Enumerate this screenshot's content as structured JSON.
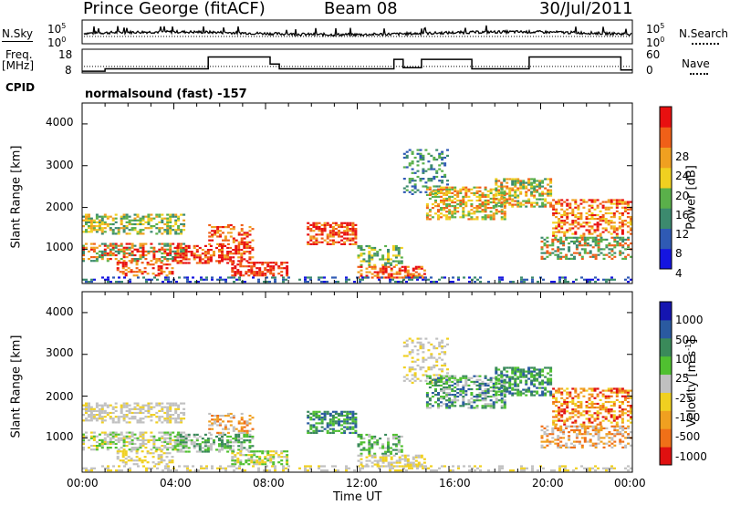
{
  "header": {
    "station": "Prince George (fitACF)",
    "beam": "Beam 08",
    "date": "30/Jul/2011"
  },
  "labels": {
    "nsky": "N.Sky",
    "nsearch": "N.Search",
    "freq": "Freq.",
    "mhz": "[MHz]",
    "nave": "Nave",
    "cpid": "CPID",
    "cpid_value": "normalsound (fast) -157"
  },
  "colors": {
    "power": [
      "#1515e0",
      "#2f5ab4",
      "#3c8a6e",
      "#5ab04a",
      "#f0d020",
      "#f0a020",
      "#f06018",
      "#e81010"
    ],
    "velocity": [
      "#e01010",
      "#f07018",
      "#f0a020",
      "#f0d020",
      "#c0c0c0",
      "#50c030",
      "#3a8a5a",
      "#2a5aa0",
      "#1515b0"
    ]
  },
  "chart_data": [
    {
      "type": "line",
      "panel": "noise",
      "left_ticks": [
        "10^5",
        "10^0"
      ],
      "right_ticks": [
        "10^5",
        "10^0"
      ]
    },
    {
      "type": "line",
      "panel": "frequency",
      "left_ticks": [
        "18",
        "8"
      ],
      "right_ticks": [
        "60",
        "0"
      ],
      "freq_segments": [
        {
          "start": 0.0,
          "end": 1.0,
          "mhz": 9.5
        },
        {
          "start": 1.0,
          "end": 5.5,
          "mhz": 10.5
        },
        {
          "start": 5.5,
          "end": 7.0,
          "mhz": 15.5
        },
        {
          "start": 7.0,
          "end": 8.2,
          "mhz": 15.5
        },
        {
          "start": 8.2,
          "end": 8.6,
          "mhz": 12.5
        },
        {
          "start": 8.6,
          "end": 13.6,
          "mhz": 10.5
        },
        {
          "start": 13.6,
          "end": 14.0,
          "mhz": 14.5
        },
        {
          "start": 14.0,
          "end": 14.8,
          "mhz": 11.0
        },
        {
          "start": 14.8,
          "end": 17.0,
          "mhz": 14.5
        },
        {
          "start": 17.0,
          "end": 19.5,
          "mhz": 10.5
        },
        {
          "start": 19.5,
          "end": 23.5,
          "mhz": 15.5
        },
        {
          "start": 23.5,
          "end": 24.0,
          "mhz": 10.0
        }
      ],
      "nave_level": 11.5
    },
    {
      "type": "heatmap",
      "panel": "power",
      "xlabel": "",
      "ylabel": "Slant Range [km]",
      "yticks": [
        1000,
        2000,
        3000,
        4000
      ],
      "ylim": [
        180,
        4500
      ],
      "colorbar_label": "Power [dB]",
      "colorbar_ticks": [
        4,
        8,
        12,
        16,
        20,
        24,
        28
      ],
      "colorbar_range": [
        0,
        32
      ]
    },
    {
      "type": "heatmap",
      "panel": "velocity",
      "xlabel": "Time UT",
      "ylabel": "Slant Range [km]",
      "yticks": [
        1000,
        2000,
        3000,
        4000
      ],
      "ylim": [
        180,
        4500
      ],
      "colorbar_label": "Velocity [m s^-1]",
      "colorbar_ticks": [
        "1000",
        "500",
        "100",
        "25",
        "-25",
        "-100",
        "-500",
        "-1000"
      ],
      "xticks": [
        "00:00",
        "04:00",
        "08:00",
        "12:00",
        "16:00",
        "20:00",
        "00:00"
      ],
      "xlim_hours": [
        0,
        24
      ]
    }
  ]
}
